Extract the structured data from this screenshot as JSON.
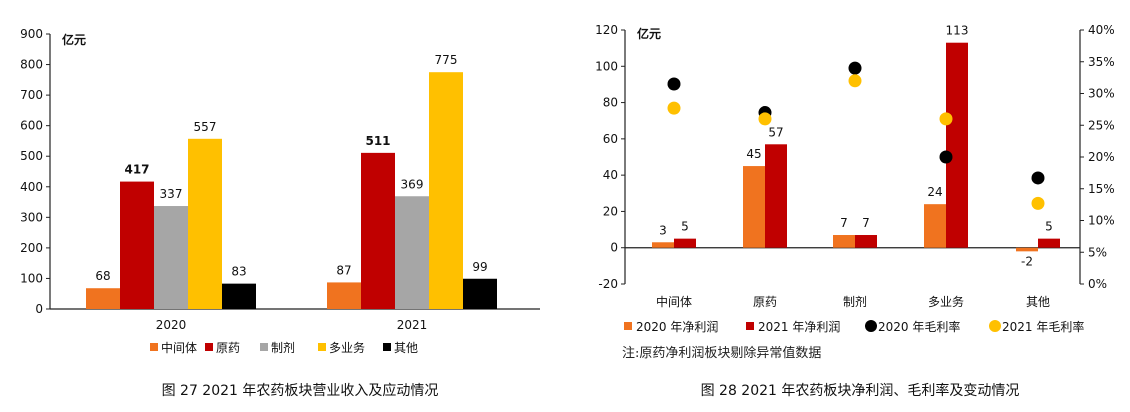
{
  "chart_data": [
    {
      "type": "bar",
      "unit_label": "亿元",
      "categories": [
        "2020",
        "2021"
      ],
      "series": [
        {
          "name": "中间体",
          "color": "#F0731F",
          "values": [
            68,
            87
          ]
        },
        {
          "name": "原药",
          "color": "#C00000",
          "values": [
            417,
            511
          ]
        },
        {
          "name": "制剂",
          "color": "#A6A6A6",
          "values": [
            337,
            369
          ]
        },
        {
          "name": "多业务",
          "color": "#FFC000",
          "values": [
            557,
            775
          ]
        },
        {
          "name": "其他",
          "color": "#000000",
          "values": [
            83,
            99
          ]
        }
      ],
      "yticks": [
        "0",
        "100",
        "200",
        "300",
        "400",
        "500",
        "600",
        "700",
        "800",
        "900"
      ],
      "ylim": [
        0,
        900
      ],
      "legend_position": "bottom",
      "caption": "图 27  2021 年农药板块营业收入及应动情况"
    },
    {
      "type": "bar",
      "unit_label": "亿元",
      "categories": [
        "中间体",
        "原药",
        "制剂",
        "多业务",
        "其他"
      ],
      "series": [
        {
          "name": "2020 年净利润",
          "kind": "bar",
          "color": "#F0731F",
          "values": [
            3,
            45,
            7,
            24,
            -2
          ]
        },
        {
          "name": "2021 年净利润",
          "kind": "bar",
          "color": "#C00000",
          "values": [
            5,
            57,
            7,
            113,
            5
          ]
        },
        {
          "name": "2020 年毛利率",
          "kind": "marker",
          "axis": "right",
          "color": "#000000",
          "values": [
            0.315,
            0.27,
            0.34,
            0.2,
            0.167
          ]
        },
        {
          "name": "2021 年毛利率",
          "kind": "marker",
          "axis": "right",
          "color": "#FFC000",
          "values": [
            0.277,
            0.26,
            0.32,
            0.26,
            0.127
          ]
        }
      ],
      "yticks": [
        "-20",
        "0",
        "20",
        "40",
        "60",
        "80",
        "100",
        "120"
      ],
      "ylim": [
        -20,
        120
      ],
      "y2ticks": [
        "0%",
        "5%",
        "10%",
        "15%",
        "20%",
        "25%",
        "30%",
        "35%",
        "40%"
      ],
      "y2lim": [
        0,
        0.4
      ],
      "legend_position": "bottom",
      "note": "注:原药净利润板块剔除异常值数据",
      "caption": "图 28  2021 年农药板块净利润、毛利率及变动情况"
    }
  ]
}
